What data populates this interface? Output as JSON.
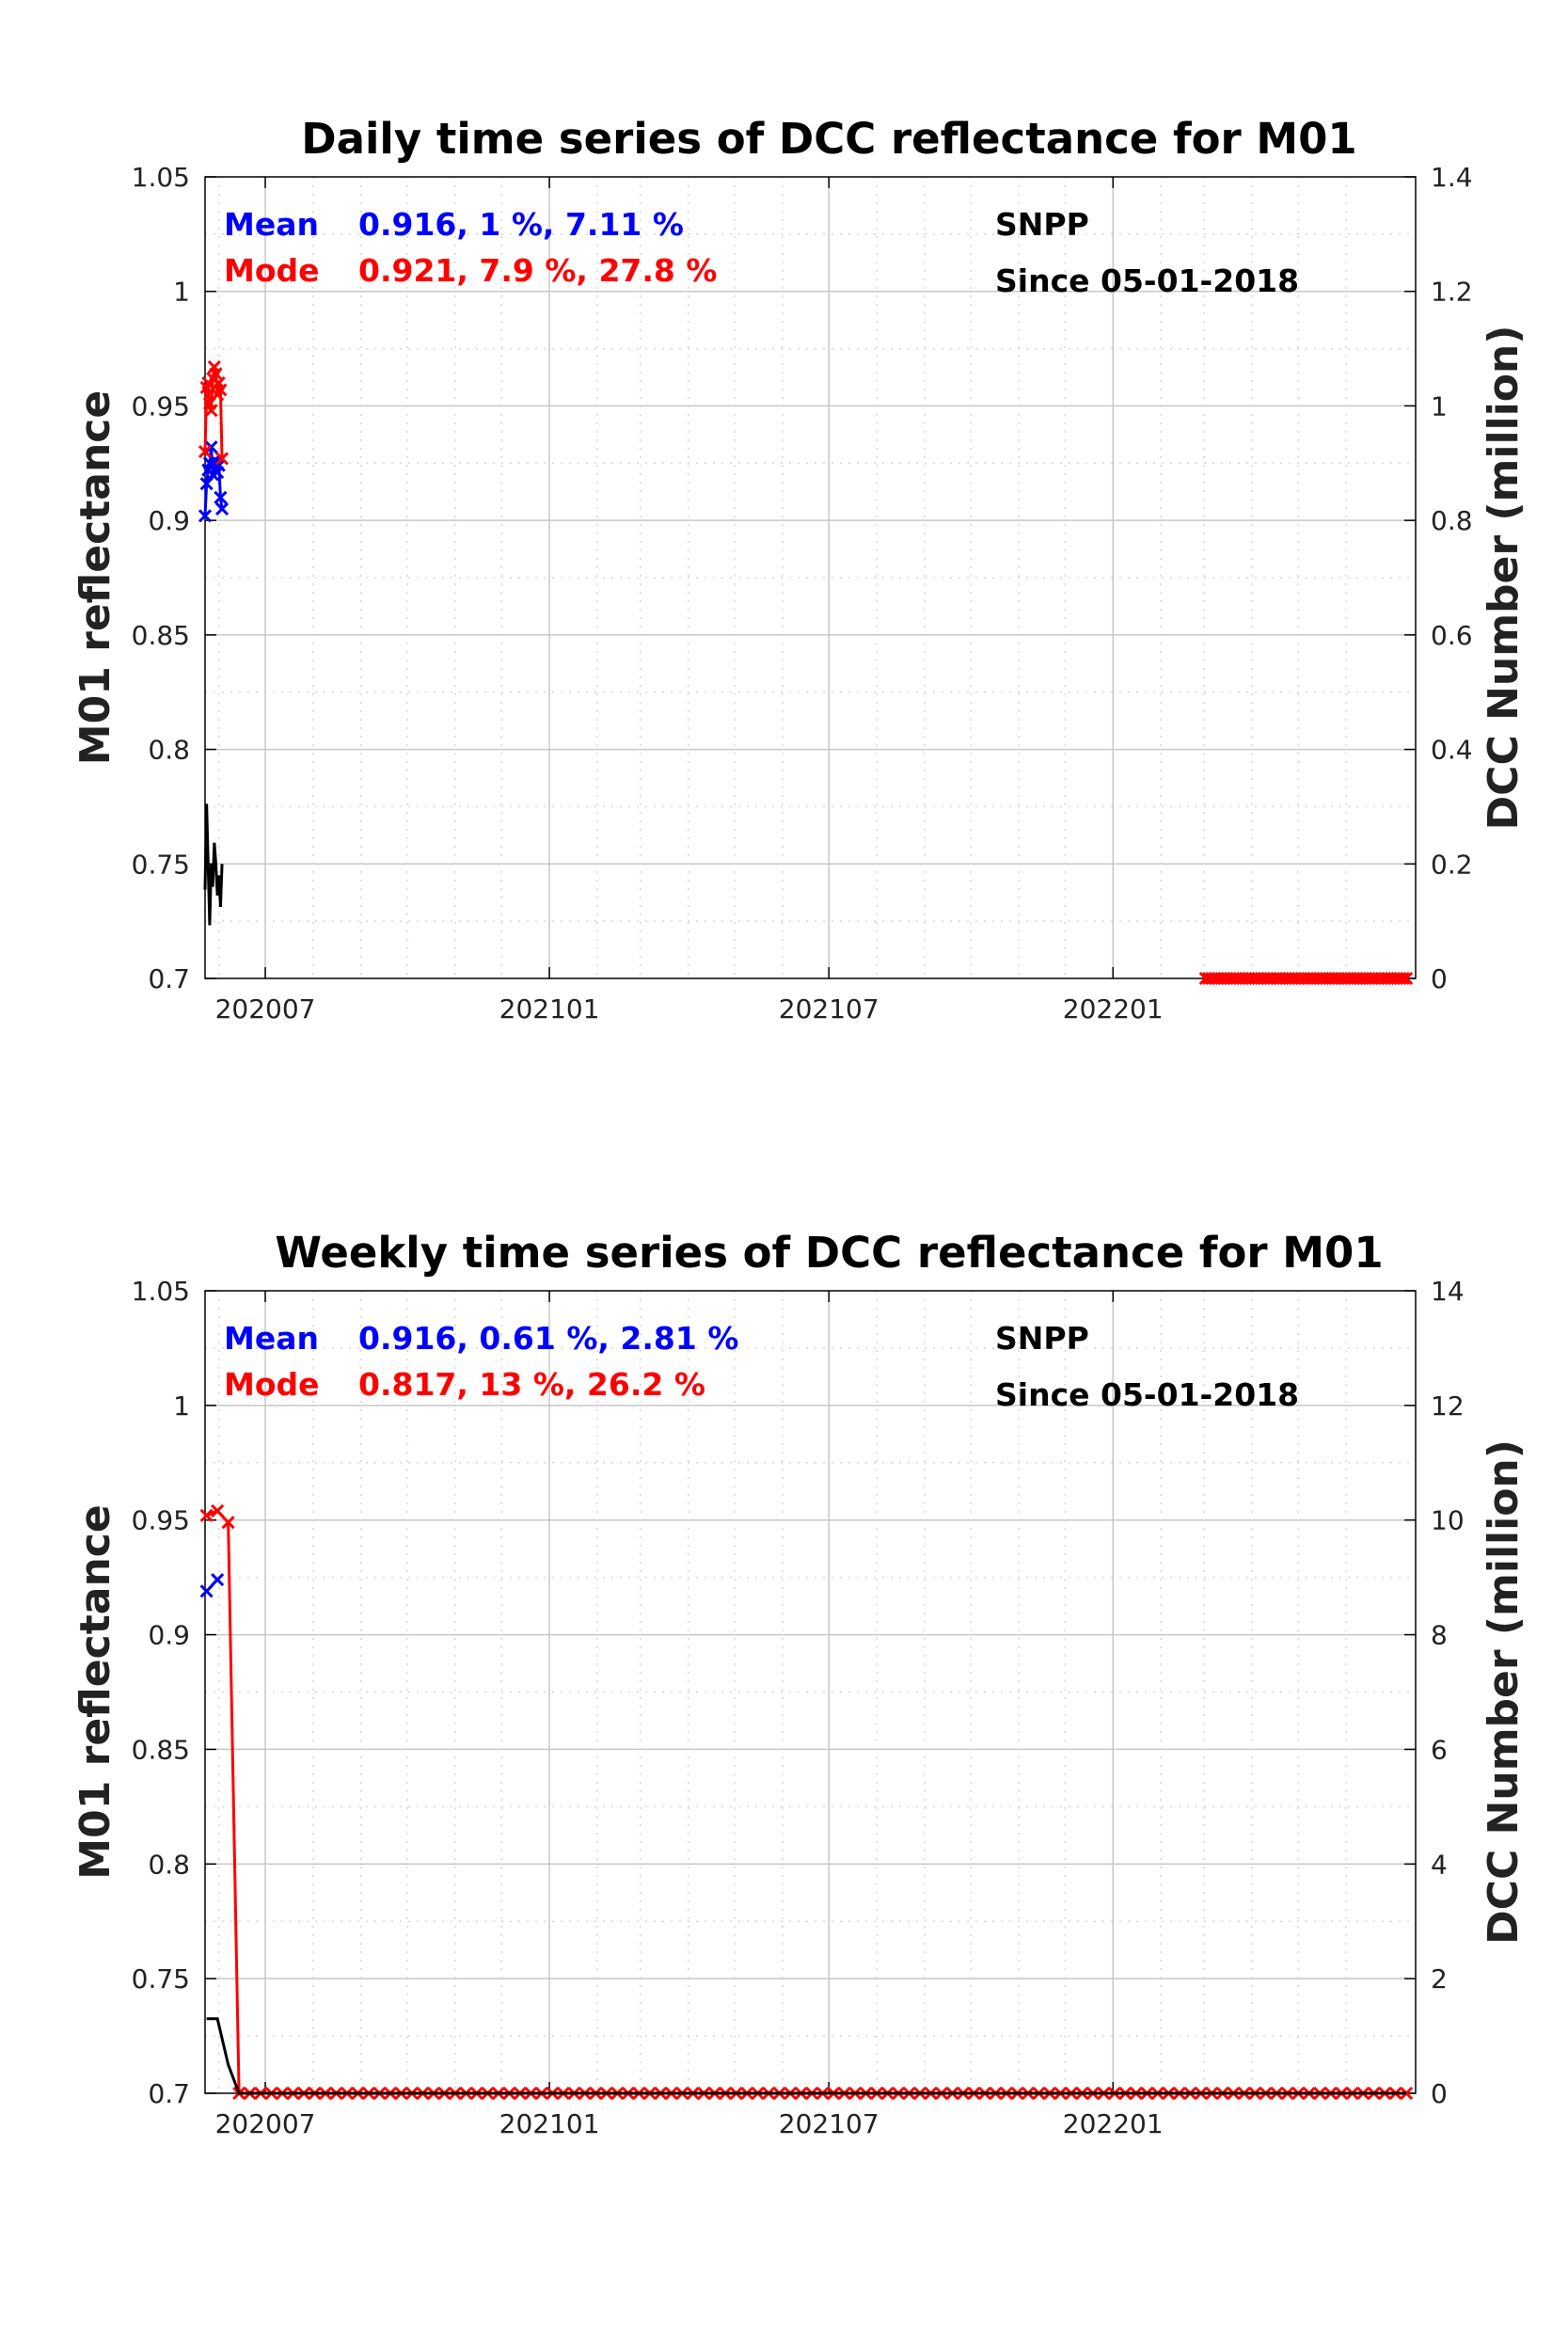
{
  "colors": {
    "mean": "#0000ff",
    "mode": "#ff0000",
    "count": "#000000",
    "text": "#000000"
  },
  "chart_data": [
    {
      "type": "line",
      "title": "Daily time series of DCC reflectance for M01",
      "ylabel": "M01 reflectance",
      "y2label": "DCC Number (million)",
      "ylim": [
        0.7,
        1.05
      ],
      "y2lim": [
        0,
        1.4
      ],
      "yticks": [
        "0.7",
        "0.75",
        "0.8",
        "0.85",
        "0.9",
        "0.95",
        "1",
        "1.05"
      ],
      "y2ticks": [
        "0",
        "0.2",
        "0.4",
        "0.6",
        "0.8",
        "1",
        "1.2",
        "1.4"
      ],
      "xlim": [
        "2020-05-23",
        "2022-07-16"
      ],
      "xticks": [
        {
          "date": "2020-07-01",
          "label": "202007"
        },
        {
          "date": "2021-01-01",
          "label": "202101"
        },
        {
          "date": "2021-07-01",
          "label": "202107"
        },
        {
          "date": "2022-01-01",
          "label": "202201"
        }
      ],
      "grid": true,
      "stats": {
        "mean_label": "Mean",
        "mean_text": "0.916, 1 %, 7.11 %",
        "mode_label": "Mode",
        "mode_text": "0.921, 7.9 %, 27.8 %",
        "satellite": "SNPP",
        "since": "Since 05-01-2018"
      },
      "series": [
        {
          "role": "mean",
          "axis": "left",
          "marker": "x",
          "x": [
            "2020-05-23",
            "2020-05-24",
            "2020-05-25",
            "2020-05-26",
            "2020-05-27",
            "2020-05-28",
            "2020-05-29",
            "2020-05-30",
            "2020-05-31",
            "2020-06-01",
            "2020-06-02",
            "2020-06-03"
          ],
          "values": [
            0.902,
            0.916,
            0.922,
            0.925,
            0.932,
            0.92,
            0.926,
            0.925,
            0.921,
            0.924,
            0.91,
            0.905
          ]
        },
        {
          "role": "mode",
          "axis": "left",
          "marker": "x",
          "x": [
            "2020-05-23",
            "2020-05-24",
            "2020-05-25",
            "2020-05-26",
            "2020-05-27",
            "2020-05-28",
            "2020-05-29",
            "2020-05-30",
            "2020-05-31",
            "2020-06-01",
            "2020-06-02",
            "2020-06-03"
          ],
          "values": [
            0.93,
            0.958,
            0.96,
            0.951,
            0.948,
            0.962,
            0.967,
            0.964,
            0.955,
            0.96,
            0.957,
            0.927
          ]
        },
        {
          "role": "mode",
          "axis": "left",
          "marker": "x",
          "x": [
            "2022-03-02",
            "2022-07-10"
          ],
          "values": [
            0.7,
            0.7
          ],
          "daily_markers": true
        },
        {
          "role": "count",
          "axis": "right",
          "marker": "none",
          "x": [
            "2020-05-23",
            "2020-05-24",
            "2020-05-25",
            "2020-05-26",
            "2020-05-27",
            "2020-05-28",
            "2020-05-29",
            "2020-05-30",
            "2020-05-31",
            "2020-06-01",
            "2020-06-02",
            "2020-06-03"
          ],
          "values": [
            0.155,
            0.305,
            0.2,
            0.093,
            0.2,
            0.16,
            0.237,
            0.2,
            0.145,
            0.18,
            0.125,
            0.2
          ]
        }
      ]
    },
    {
      "type": "line",
      "title": "Weekly time series of DCC reflectance for M01",
      "ylabel": "M01 reflectance",
      "y2label": "DCC Number (million)",
      "ylim": [
        0.7,
        1.05
      ],
      "y2lim": [
        0,
        14
      ],
      "yticks": [
        "0.7",
        "0.75",
        "0.8",
        "0.85",
        "0.9",
        "0.95",
        "1",
        "1.05"
      ],
      "y2ticks": [
        "0",
        "2",
        "4",
        "6",
        "8",
        "10",
        "12",
        "14"
      ],
      "xlim": [
        "2020-05-23",
        "2022-07-16"
      ],
      "xticks": [
        {
          "date": "2020-07-01",
          "label": "202007"
        },
        {
          "date": "2021-01-01",
          "label": "202101"
        },
        {
          "date": "2021-07-01",
          "label": "202107"
        },
        {
          "date": "2022-01-01",
          "label": "202201"
        }
      ],
      "grid": true,
      "stats": {
        "mean_label": "Mean",
        "mean_text": "0.916, 0.61 %, 2.81 %",
        "mode_label": "Mode",
        "mode_text": "0.817, 13 %, 26.2 %",
        "satellite": "SNPP",
        "since": "Since 05-01-2018"
      },
      "series": [
        {
          "role": "mean",
          "axis": "left",
          "marker": "x",
          "x": [
            "2020-05-24",
            "2020-05-31"
          ],
          "values": [
            0.919,
            0.924
          ]
        },
        {
          "role": "mode",
          "axis": "left",
          "marker": "x",
          "x": [
            "2020-05-24",
            "2020-05-31",
            "2020-06-07",
            "2020-06-14"
          ],
          "values": [
            0.952,
            0.954,
            0.949,
            0.7
          ],
          "weekly_zero_until": "2022-07-10"
        },
        {
          "role": "count",
          "axis": "right",
          "marker": "none",
          "x": [
            "2020-05-24",
            "2020-05-31",
            "2020-06-07",
            "2020-06-14",
            "2022-07-10"
          ],
          "values": [
            1.3,
            1.3,
            0.5,
            0,
            0
          ]
        }
      ]
    }
  ]
}
